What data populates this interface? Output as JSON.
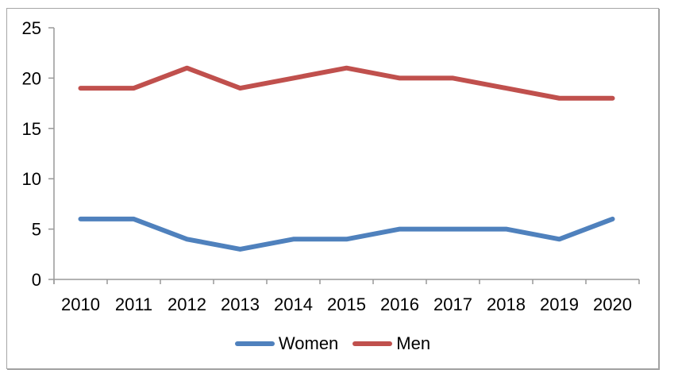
{
  "canvas": {
    "background": "#ffffff",
    "frame_border_color": "#a6a6a6"
  },
  "chart_data": {
    "type": "line",
    "title": "",
    "xlabel": "",
    "ylabel": "",
    "categories": [
      "2010",
      "2011",
      "2012",
      "2013",
      "2014",
      "2015",
      "2016",
      "2017",
      "2018",
      "2019",
      "2020"
    ],
    "series": [
      {
        "name": "Women",
        "color": "#4F81BD",
        "values": [
          6,
          6,
          4,
          3,
          4,
          4,
          5,
          5,
          5,
          4,
          6
        ]
      },
      {
        "name": "Men",
        "color": "#C0504D",
        "values": [
          19,
          19,
          21,
          19,
          20,
          21,
          20,
          20,
          19,
          18,
          18
        ]
      }
    ],
    "ylim": [
      0,
      25
    ],
    "y_ticks": [
      0,
      5,
      10,
      15,
      20,
      25
    ],
    "grid": false,
    "legend_position": "bottom-center",
    "axis_color": "#999999",
    "label_color": "#000000",
    "line_width": 6
  }
}
